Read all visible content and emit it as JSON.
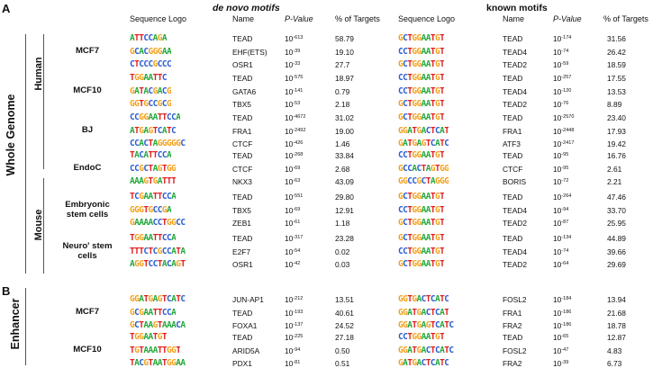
{
  "panels": {
    "a": "A",
    "b": "B"
  },
  "titles": {
    "denovo": "de novo motifs",
    "known": "known motifs"
  },
  "headers": {
    "logo": "Sequence Logo",
    "name": "Name",
    "pvalue": "P-Value",
    "targets": "% of Targets"
  },
  "side_labels": {
    "whole_genome": "Whole Genome",
    "human": "Human",
    "mouse": "Mouse",
    "enhancer": "Enhancer"
  },
  "groups": [
    {
      "sample": "MCF7",
      "denovo": [
        {
          "logo": "ATTCCAGA",
          "name": "TEAD",
          "pexp": "-613",
          "pct": "58.79"
        },
        {
          "logo": "GCACGGGAA",
          "name": "EHF(ETS)",
          "pexp": "-39",
          "pct": "19.10"
        },
        {
          "logo": "CTCCCGCCC",
          "name": "OSR1",
          "pexp": "-33",
          "pct": "27.7"
        }
      ],
      "known": [
        {
          "logo": "GCTGGAATGT",
          "name": "TEAD",
          "pexp": "-174",
          "pct": "31.56"
        },
        {
          "logo": "CCTGGAATGT",
          "name": "TEAD4",
          "pexp": "-74",
          "pct": "26.42"
        },
        {
          "logo": "GCTGGAATGT",
          "name": "TEAD2",
          "pexp": "-59",
          "pct": "18.59"
        }
      ]
    },
    {
      "sample": "MCF10",
      "denovo": [
        {
          "logo": "TGGAATTC",
          "name": "TEAD",
          "pexp": "-575",
          "pct": "18.97"
        },
        {
          "logo": "GATACGACG",
          "name": "GATA6",
          "pexp": "-141",
          "pct": "0.79"
        },
        {
          "logo": "GGTGCCGCG",
          "name": "TBX5",
          "pexp": "-53",
          "pct": "2.18"
        }
      ],
      "known": [
        {
          "logo": "CCTGGAATGT",
          "name": "TEAD",
          "pexp": "-257",
          "pct": "17.55"
        },
        {
          "logo": "CCTGGAATGT",
          "name": "TEAD4",
          "pexp": "-120",
          "pct": "13.53"
        },
        {
          "logo": "GCTGGAATGT",
          "name": "TEAD2",
          "pexp": "-76",
          "pct": "8.89"
        }
      ]
    },
    {
      "sample": "BJ",
      "denovo": [
        {
          "logo": "CCGGAATTCCA",
          "name": "TEAD",
          "pexp": "-4672",
          "pct": "31.02"
        },
        {
          "logo": "ATGAGTCATC",
          "name": "FRA1",
          "pexp": "-2492",
          "pct": "19.00"
        },
        {
          "logo": "CCACTAGGGGGC",
          "name": "CTCF",
          "pexp": "-426",
          "pct": "1.46"
        }
      ],
      "known": [
        {
          "logo": "GCTGGAATGT",
          "name": "TEAD",
          "pexp": "-2570",
          "pct": "23.40"
        },
        {
          "logo": "GGATGACTCAT",
          "name": "FRA1",
          "pexp": "-2448",
          "pct": "17.93"
        },
        {
          "logo": "GATGAGTCATC",
          "name": "ATF3",
          "pexp": "-2417",
          "pct": "19.42"
        }
      ]
    },
    {
      "sample": "EndoC",
      "denovo": [
        {
          "logo": "TACATTCCA",
          "name": "TEAD",
          "pexp": "-268",
          "pct": "33.84"
        },
        {
          "logo": "CCGCTAGTGG",
          "name": "CTCF",
          "pexp": "-69",
          "pct": "2.68"
        },
        {
          "logo": "AAAGTGATTT",
          "name": "NKX3",
          "pexp": "-63",
          "pct": "43.09"
        }
      ],
      "known": [
        {
          "logo": "CCTGGAATGT",
          "name": "TEAD",
          "pexp": "-95",
          "pct": "16.76"
        },
        {
          "logo": "GCCACTAGTGG",
          "name": "CTCF",
          "pexp": "-95",
          "pct": "2.61"
        },
        {
          "logo": "GGCCGCTAGGG",
          "name": "BORIS",
          "pexp": "-72",
          "pct": "2.21"
        }
      ]
    },
    {
      "sample": "Embryonic stem cells",
      "denovo": [
        {
          "logo": "TCGAATTCCA",
          "name": "TEAD",
          "pexp": "-551",
          "pct": "29.80"
        },
        {
          "logo": "GGGTGCCGA",
          "name": "TBX5",
          "pexp": "-69",
          "pct": "12.91"
        },
        {
          "logo": "GAAAACCTGGCC",
          "name": "ZEB1",
          "pexp": "-61",
          "pct": "1.18"
        }
      ],
      "known": [
        {
          "logo": "GCTGGAATGT",
          "name": "TEAD",
          "pexp": "-264",
          "pct": "47.46"
        },
        {
          "logo": "CCTGGAATGT",
          "name": "TEAD4",
          "pexp": "-94",
          "pct": "33.70"
        },
        {
          "logo": "GCTGGAATGT",
          "name": "TEAD2",
          "pexp": "-87",
          "pct": "25.95"
        }
      ]
    },
    {
      "sample": "Neuro' stem cells",
      "denovo": [
        {
          "logo": "TGGAATTCCA",
          "name": "TEAD",
          "pexp": "-317",
          "pct": "23.28"
        },
        {
          "logo": "TTTCTCGCCATA",
          "name": "E2F7",
          "pexp": "-54",
          "pct": "0.02"
        },
        {
          "logo": "AGGTCCTACAGT",
          "name": "OSR1",
          "pexp": "-42",
          "pct": "0.03"
        }
      ],
      "known": [
        {
          "logo": "GCTGGAATGT",
          "name": "TEAD",
          "pexp": "-134",
          "pct": "44.89"
        },
        {
          "logo": "CCTGGAATGT",
          "name": "TEAD4",
          "pexp": "-74",
          "pct": "39.66"
        },
        {
          "logo": "GCTGGAATGT",
          "name": "TEAD2",
          "pexp": "-64",
          "pct": "29.69"
        }
      ]
    },
    {
      "sample": "MCF7",
      "denovo": [
        {
          "logo": "GGATGAGTCATC",
          "name": "JUN-AP1",
          "pexp": "-212",
          "pct": "13.51"
        },
        {
          "logo": "GCGAATTCCA",
          "name": "TEAD",
          "pexp": "-193",
          "pct": "40.61"
        },
        {
          "logo": "GCTAAGTAAACA",
          "name": "FOXA1",
          "pexp": "-137",
          "pct": "24.52"
        }
      ],
      "known": [
        {
          "logo": "GGTGACTCATC",
          "name": "FOSL2",
          "pexp": "-184",
          "pct": "13.94"
        },
        {
          "logo": "GGATGACTCAT",
          "name": "FRA1",
          "pexp": "-186",
          "pct": "21.68"
        },
        {
          "logo": "GGATGAGTCATC",
          "name": "FRA2",
          "pexp": "-186",
          "pct": "18.78"
        }
      ]
    },
    {
      "sample": "MCF10",
      "denovo": [
        {
          "logo": "TGGAATGT",
          "name": "TEAD",
          "pexp": "-225",
          "pct": "27.18"
        },
        {
          "logo": "TGTAAATTGGT",
          "name": "ARID5A",
          "pexp": "-94",
          "pct": "0.50"
        },
        {
          "logo": "TACGTAATGGAA",
          "name": "PDX1",
          "pexp": "-81",
          "pct": "0.51"
        }
      ],
      "known": [
        {
          "logo": "CCTGGAATGT",
          "name": "TEAD",
          "pexp": "-65",
          "pct": "12.87"
        },
        {
          "logo": "GGATGACTCATC",
          "name": "FOSL2",
          "pexp": "-47",
          "pct": "4.83"
        },
        {
          "logo": "GATGACTCATC",
          "name": "FRA2",
          "pexp": "-39",
          "pct": "6.73"
        }
      ]
    }
  ]
}
